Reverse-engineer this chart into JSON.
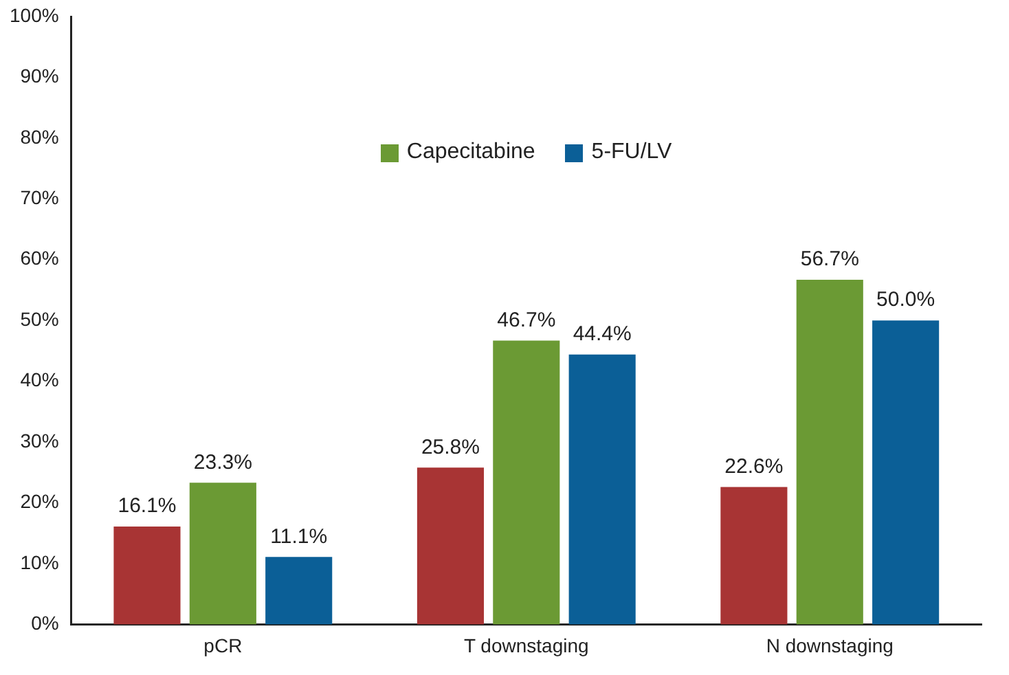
{
  "chart_data": {
    "type": "bar",
    "categories": [
      "pCR",
      "T downstaging",
      "N downstaging"
    ],
    "series": [
      {
        "color": "#a83434",
        "values": [
          16.1,
          25.8,
          22.6
        ],
        "value_labels": [
          "16.1%",
          "25.8%",
          "22.6%"
        ]
      },
      {
        "name": "Capecitabine",
        "color": "#6b9a34",
        "values": [
          23.3,
          46.7,
          56.7
        ],
        "value_labels": [
          "23.3%",
          "46.7%",
          "56.7%"
        ]
      },
      {
        "name": "5-FU/LV",
        "color": "#0b5f97",
        "values": [
          11.1,
          44.4,
          50.0
        ],
        "value_labels": [
          "11.1%",
          "44.4%",
          "50.0%"
        ]
      }
    ],
    "ylim": [
      0,
      100
    ],
    "yticks": [
      {
        "value": 0,
        "label": "0%"
      },
      {
        "value": 10,
        "label": "10%"
      },
      {
        "value": 20,
        "label": "20%"
      },
      {
        "value": 30,
        "label": "30%"
      },
      {
        "value": 40,
        "label": "40%"
      },
      {
        "value": 50,
        "label": "50%"
      },
      {
        "value": 60,
        "label": "60%"
      },
      {
        "value": 70,
        "label": "70%"
      },
      {
        "value": 80,
        "label": "80%"
      },
      {
        "value": 90,
        "label": "90%"
      },
      {
        "value": 100,
        "label": "100%"
      }
    ],
    "grid": false,
    "legend": "top"
  }
}
